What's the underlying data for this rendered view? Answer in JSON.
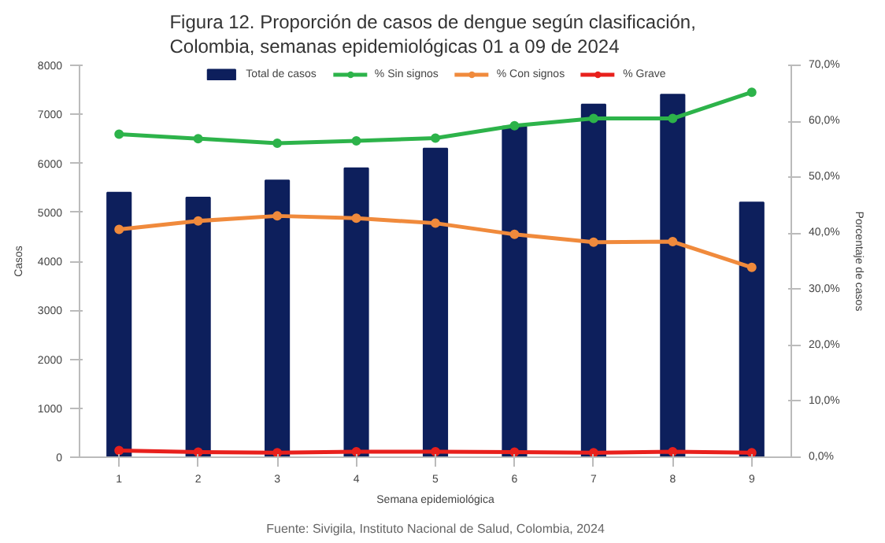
{
  "chart_data": {
    "type": "bar",
    "title": "Figura 12.  Proporción de casos de dengue según clasificación,\nColombia, semanas epidemiológicas 01 a 09 de 2024",
    "xlabel": "Semana epidemiológica",
    "ylabel": "Casos",
    "y2label": "Porcentaje de casos",
    "annotations": [
      "Fuente: Sivigila, Instituto Nacional de Salud, Colombia, 2024"
    ],
    "categories": [
      "1",
      "2",
      "3",
      "4",
      "5",
      "6",
      "7",
      "8",
      "9"
    ],
    "series": [
      {
        "name": "Total de casos",
        "color": "#0d1f5c",
        "values": [
          5400,
          5300,
          5650,
          5900,
          6300,
          6750,
          7200,
          7400,
          5200
        ]
      },
      {
        "name": "% Sin signos",
        "type": "line",
        "axis": "y2",
        "color": "#2db34a",
        "values": [
          57.7,
          56.9,
          56.1,
          56.5,
          57.0,
          59.2,
          60.5,
          60.5,
          65.2
        ]
      },
      {
        "name": "% Con signos",
        "type": "line",
        "axis": "y2",
        "color": "#f08a3c",
        "values": [
          40.7,
          42.2,
          43.1,
          42.7,
          41.8,
          39.8,
          38.4,
          38.5,
          33.9
        ]
      },
      {
        "name": "% Grave",
        "type": "line",
        "axis": "y2",
        "color": "#e8201c",
        "values": [
          1.2,
          0.9,
          0.8,
          1.0,
          1.0,
          0.9,
          0.8,
          1.0,
          0.8
        ]
      }
    ],
    "ylim": [
      0,
      8000
    ],
    "yticks": [
      0,
      1000,
      2000,
      3000,
      4000,
      5000,
      6000,
      7000,
      8000
    ],
    "y2lim": [
      0,
      70
    ],
    "y2ticks": [
      {
        "value": 0,
        "label": "0,0%"
      },
      {
        "value": 10,
        "label": "10,0%"
      },
      {
        "value": 20,
        "label": "20,0%"
      },
      {
        "value": 30,
        "label": "30,0%"
      },
      {
        "value": 40,
        "label": "40,0%"
      },
      {
        "value": 50,
        "label": "50,0%"
      },
      {
        "value": 60,
        "label": "60,0%"
      },
      {
        "value": 70,
        "label": "70,0%"
      }
    ],
    "legend": "top",
    "grid": false,
    "marker": "circle",
    "line_style": "solid"
  }
}
